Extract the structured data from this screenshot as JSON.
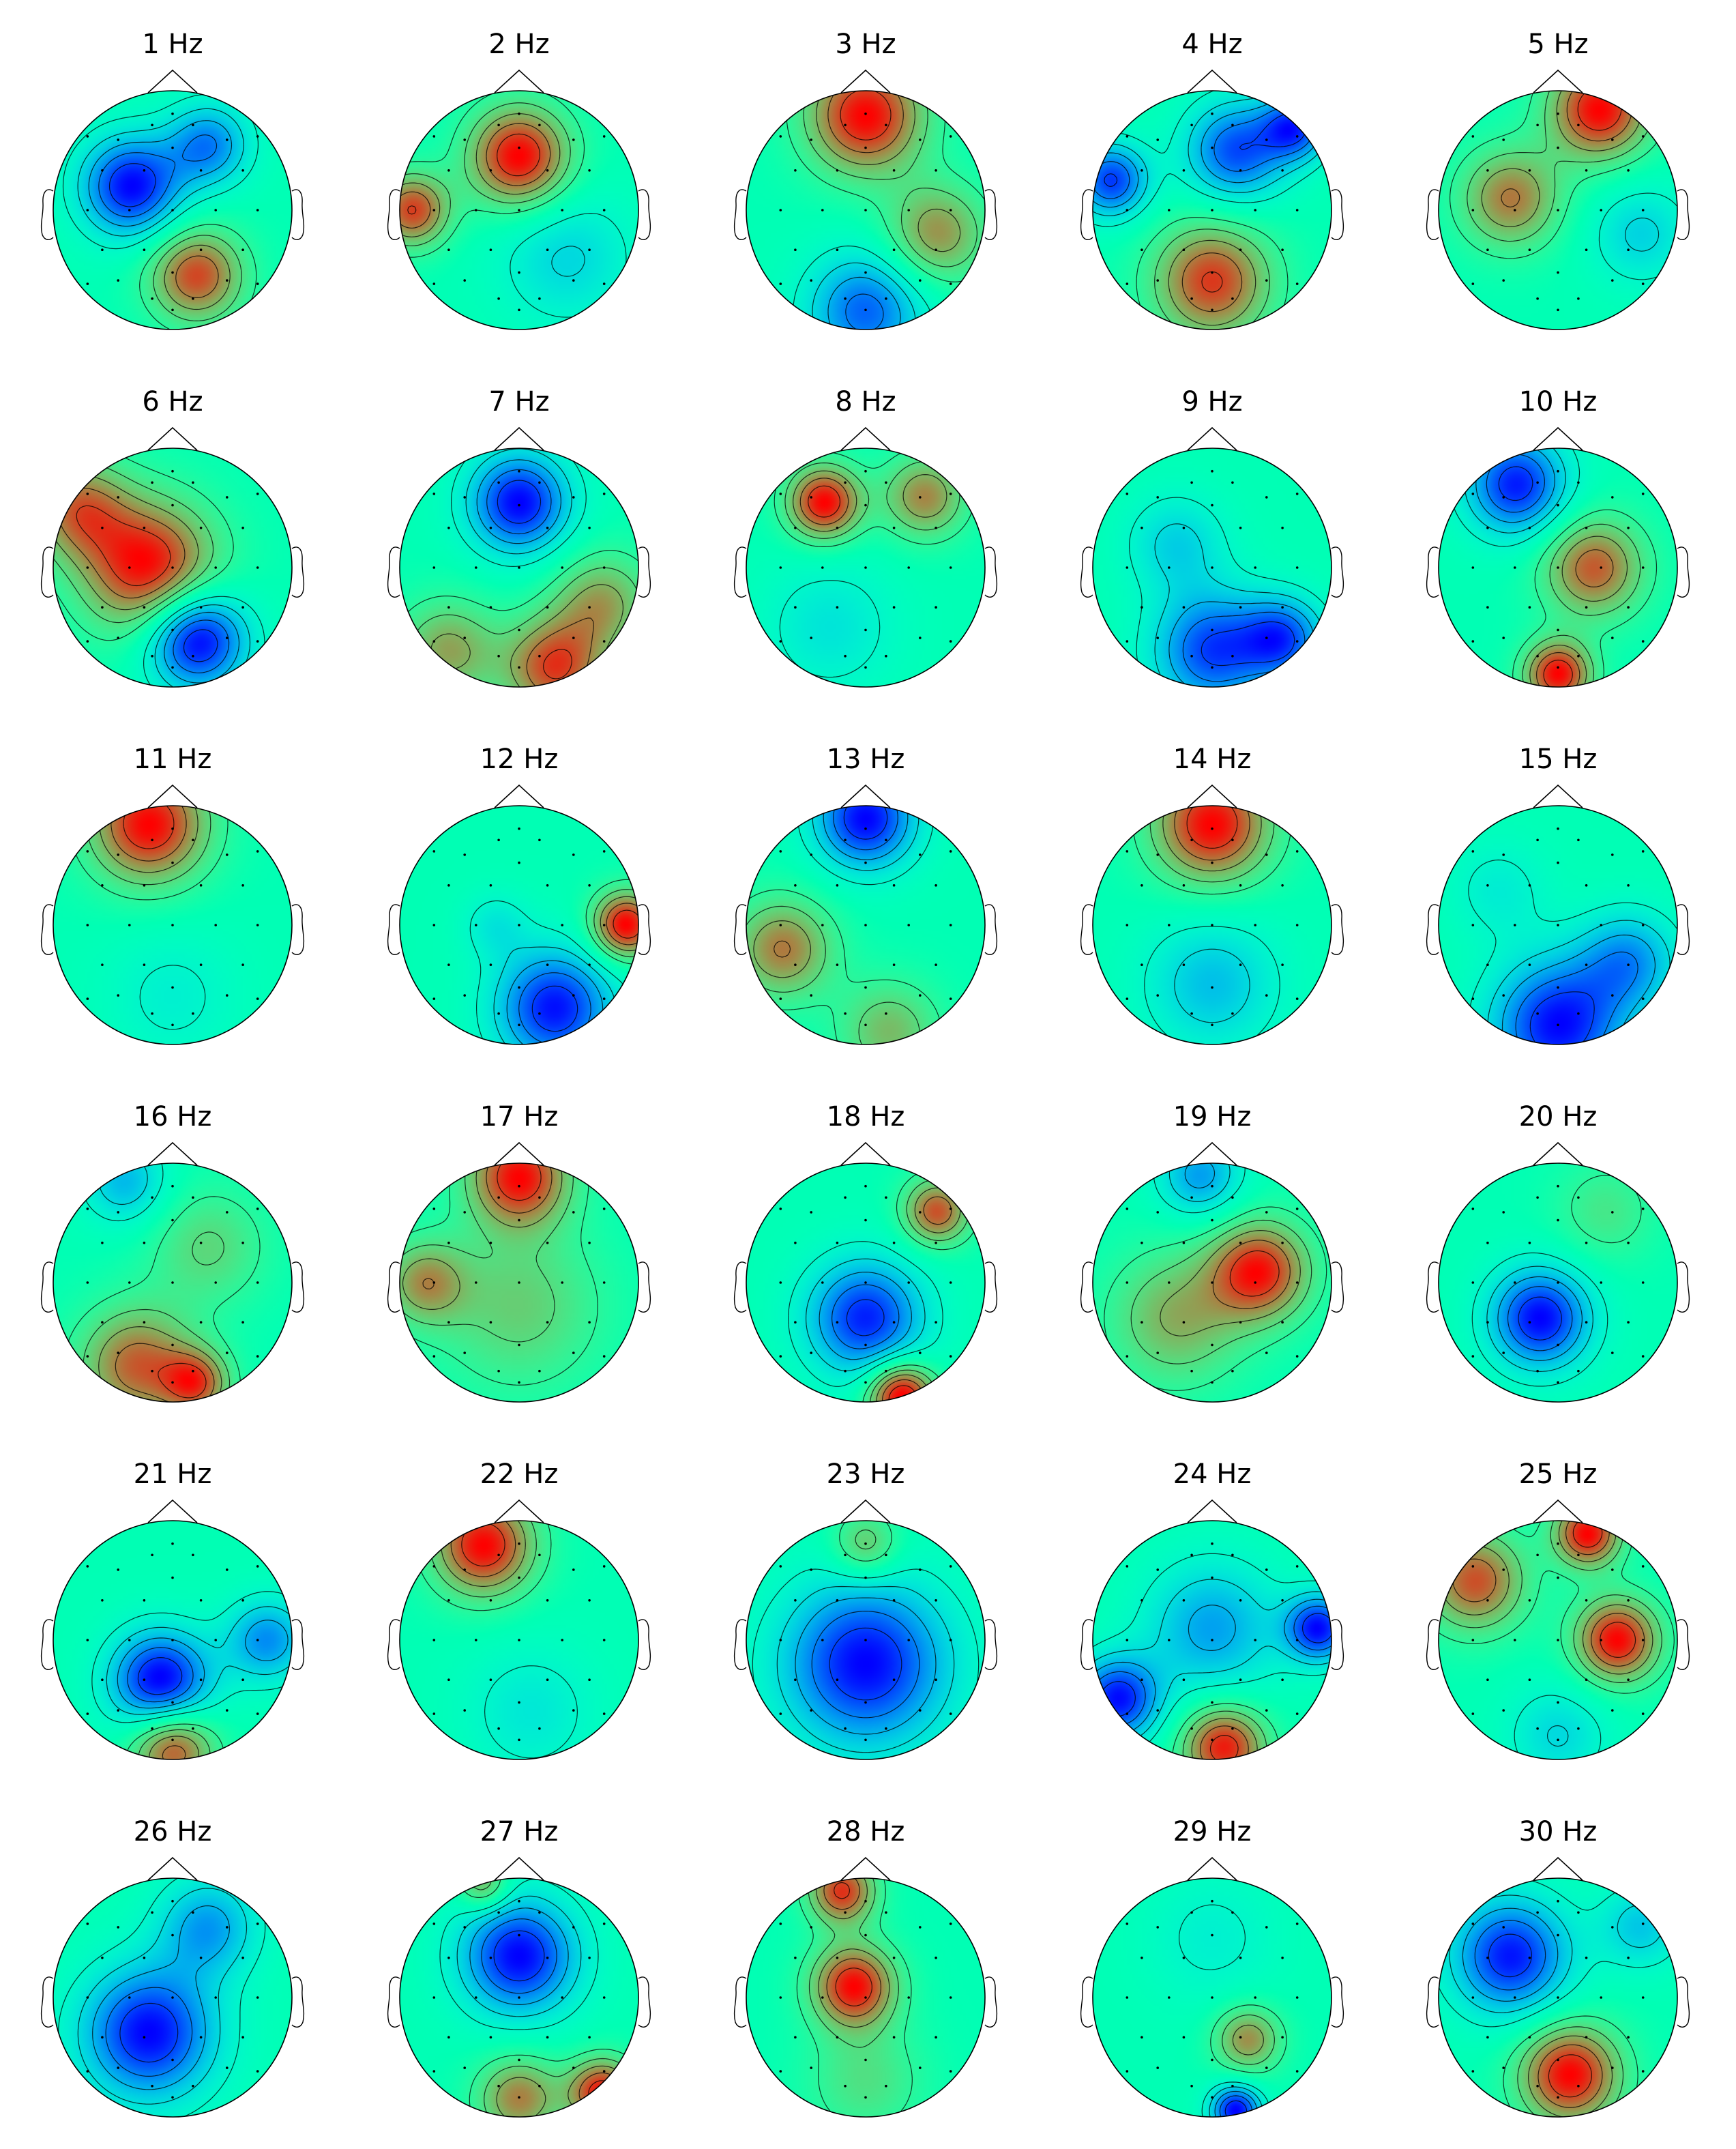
{
  "figure": {
    "colormap": "rainbow",
    "colors": {
      "outline": "#000000",
      "background": "#ffffff"
    },
    "panels": [
      {
        "title": "1 Hz",
        "blobs": [
          {
            "u": -0.35,
            "v": -0.2,
            "s": 0.3,
            "a": -0.9
          },
          {
            "u": 0.3,
            "v": -0.55,
            "s": 0.25,
            "a": -0.6
          },
          {
            "u": 0.2,
            "v": 0.55,
            "s": 0.28,
            "a": 0.75
          }
        ]
      },
      {
        "title": "2 Hz",
        "blobs": [
          {
            "u": 0.0,
            "v": -0.45,
            "s": 0.3,
            "a": 0.85
          },
          {
            "u": -0.9,
            "v": 0.0,
            "s": 0.22,
            "a": 0.7
          },
          {
            "u": 0.4,
            "v": 0.4,
            "s": 0.4,
            "a": -0.3
          }
        ]
      },
      {
        "title": "3 Hz",
        "blobs": [
          {
            "u": 0.0,
            "v": -0.8,
            "s": 0.35,
            "a": 0.4
          },
          {
            "u": 0.0,
            "v": 0.85,
            "s": 0.35,
            "a": -0.3
          },
          {
            "u": 0.6,
            "v": 0.2,
            "s": 0.3,
            "a": 0.25
          }
        ]
      },
      {
        "title": "4 Hz",
        "blobs": [
          {
            "u": 0.2,
            "v": -0.5,
            "s": 0.3,
            "a": -0.8
          },
          {
            "u": -0.85,
            "v": -0.25,
            "s": 0.22,
            "a": -0.85
          },
          {
            "u": 0.7,
            "v": -0.7,
            "s": 0.2,
            "a": -0.8
          },
          {
            "u": 0.0,
            "v": 0.6,
            "s": 0.35,
            "a": 0.85
          }
        ]
      },
      {
        "title": "5 Hz",
        "blobs": [
          {
            "u": 0.35,
            "v": -0.85,
            "s": 0.3,
            "a": 0.8
          },
          {
            "u": -0.4,
            "v": -0.1,
            "s": 0.3,
            "a": 0.55
          },
          {
            "u": 0.7,
            "v": 0.2,
            "s": 0.3,
            "a": -0.3
          }
        ]
      },
      {
        "title": "6 Hz",
        "blobs": [
          {
            "u": -0.2,
            "v": 0.0,
            "s": 0.4,
            "a": 0.45
          },
          {
            "u": 0.2,
            "v": 0.6,
            "s": 0.3,
            "a": -0.5
          },
          {
            "u": -0.8,
            "v": -0.5,
            "s": 0.3,
            "a": 0.3
          }
        ]
      },
      {
        "title": "7 Hz",
        "blobs": [
          {
            "u": 0.0,
            "v": -0.55,
            "s": 0.3,
            "a": -0.9
          },
          {
            "u": 0.3,
            "v": 0.85,
            "s": 0.3,
            "a": 0.75
          },
          {
            "u": 0.7,
            "v": 0.3,
            "s": 0.3,
            "a": 0.5
          },
          {
            "u": -0.6,
            "v": 0.7,
            "s": 0.3,
            "a": 0.5
          }
        ]
      },
      {
        "title": "8 Hz",
        "blobs": [
          {
            "u": -0.35,
            "v": -0.55,
            "s": 0.22,
            "a": 0.7
          },
          {
            "u": 0.5,
            "v": -0.6,
            "s": 0.25,
            "a": 0.45
          },
          {
            "u": -0.3,
            "v": 0.5,
            "s": 0.4,
            "a": -0.2
          }
        ]
      },
      {
        "title": "9 Hz",
        "blobs": [
          {
            "u": 0.0,
            "v": 0.7,
            "s": 0.35,
            "a": -0.55
          },
          {
            "u": -0.3,
            "v": -0.2,
            "s": 0.3,
            "a": -0.25
          },
          {
            "u": 0.6,
            "v": 0.6,
            "s": 0.25,
            "a": -0.5
          }
        ]
      },
      {
        "title": "10 Hz",
        "blobs": [
          {
            "u": -0.35,
            "v": -0.7,
            "s": 0.3,
            "a": -0.85
          },
          {
            "u": 0.3,
            "v": 0.0,
            "s": 0.3,
            "a": 0.7
          },
          {
            "u": 0.0,
            "v": 0.9,
            "s": 0.2,
            "a": 0.9
          }
        ]
      },
      {
        "title": "11 Hz",
        "blobs": [
          {
            "u": -0.2,
            "v": -0.85,
            "s": 0.35,
            "a": 0.95
          },
          {
            "u": 0.0,
            "v": 0.6,
            "s": 0.4,
            "a": -0.2
          }
        ]
      },
      {
        "title": "12 Hz",
        "blobs": [
          {
            "u": 0.9,
            "v": 0.0,
            "s": 0.2,
            "a": 0.8
          },
          {
            "u": 0.3,
            "v": 0.7,
            "s": 0.35,
            "a": -0.75
          },
          {
            "u": -0.2,
            "v": 0.0,
            "s": 0.2,
            "a": -0.2
          }
        ]
      },
      {
        "title": "13 Hz",
        "blobs": [
          {
            "u": 0.0,
            "v": -0.9,
            "s": 0.3,
            "a": -0.95
          },
          {
            "u": -0.7,
            "v": 0.2,
            "s": 0.3,
            "a": 0.65
          },
          {
            "u": 0.2,
            "v": 0.9,
            "s": 0.3,
            "a": 0.45
          }
        ]
      },
      {
        "title": "14 Hz",
        "blobs": [
          {
            "u": 0.0,
            "v": -0.85,
            "s": 0.35,
            "a": 0.55
          },
          {
            "u": 0.0,
            "v": 0.5,
            "s": 0.4,
            "a": -0.25
          }
        ]
      },
      {
        "title": "15 Hz",
        "blobs": [
          {
            "u": 0.0,
            "v": 0.85,
            "s": 0.4,
            "a": -0.85
          },
          {
            "u": 0.6,
            "v": 0.3,
            "s": 0.3,
            "a": -0.5
          },
          {
            "u": -0.5,
            "v": -0.3,
            "s": 0.3,
            "a": -0.2
          }
        ]
      },
      {
        "title": "16 Hz",
        "blobs": [
          {
            "u": -0.3,
            "v": 0.7,
            "s": 0.35,
            "a": 0.85
          },
          {
            "u": 0.2,
            "v": 0.85,
            "s": 0.2,
            "a": 0.8
          },
          {
            "u": 0.3,
            "v": -0.3,
            "s": 0.35,
            "a": 0.4
          },
          {
            "u": -0.4,
            "v": -0.85,
            "s": 0.25,
            "a": -0.55
          }
        ]
      },
      {
        "title": "17 Hz",
        "blobs": [
          {
            "u": 0.0,
            "v": -0.9,
            "s": 0.3,
            "a": 0.85
          },
          {
            "u": -0.8,
            "v": 0.0,
            "s": 0.25,
            "a": 0.5
          },
          {
            "u": 0.0,
            "v": 0.2,
            "s": 0.5,
            "a": 0.35
          }
        ]
      },
      {
        "title": "18 Hz",
        "blobs": [
          {
            "u": 0.0,
            "v": 0.3,
            "s": 0.35,
            "a": -0.75
          },
          {
            "u": 0.3,
            "v": 0.95,
            "s": 0.2,
            "a": 0.9
          },
          {
            "u": 0.6,
            "v": -0.6,
            "s": 0.2,
            "a": 0.65
          }
        ]
      },
      {
        "title": "19 Hz",
        "blobs": [
          {
            "u": 0.4,
            "v": -0.1,
            "s": 0.3,
            "a": 0.8
          },
          {
            "u": -0.3,
            "v": 0.3,
            "s": 0.4,
            "a": 0.45
          },
          {
            "u": -0.1,
            "v": -0.9,
            "s": 0.25,
            "a": -0.5
          }
        ]
      },
      {
        "title": "20 Hz",
        "blobs": [
          {
            "u": -0.15,
            "v": 0.3,
            "s": 0.3,
            "a": -0.55
          },
          {
            "u": 0.4,
            "v": -0.6,
            "s": 0.3,
            "a": 0.15
          }
        ]
      },
      {
        "title": "21 Hz",
        "blobs": [
          {
            "u": -0.1,
            "v": 0.35,
            "s": 0.3,
            "a": -0.85
          },
          {
            "u": 0.0,
            "v": 0.9,
            "s": 0.25,
            "a": 0.7
          },
          {
            "u": 0.8,
            "v": 0.0,
            "s": 0.25,
            "a": -0.5
          }
        ]
      },
      {
        "title": "22 Hz",
        "blobs": [
          {
            "u": -0.3,
            "v": -0.8,
            "s": 0.3,
            "a": 0.75
          },
          {
            "u": 0.1,
            "v": 0.6,
            "s": 0.4,
            "a": -0.2
          }
        ]
      },
      {
        "title": "23 Hz",
        "blobs": [
          {
            "u": 0.0,
            "v": 0.2,
            "s": 0.5,
            "a": -0.4
          },
          {
            "u": 0.0,
            "v": -0.8,
            "s": 0.2,
            "a": 0.2
          }
        ]
      },
      {
        "title": "24 Hz",
        "blobs": [
          {
            "u": 0.9,
            "v": -0.1,
            "s": 0.2,
            "a": -0.85
          },
          {
            "u": -0.8,
            "v": 0.5,
            "s": 0.25,
            "a": -0.85
          },
          {
            "u": 0.1,
            "v": 0.9,
            "s": 0.25,
            "a": 0.85
          },
          {
            "u": 0.0,
            "v": -0.1,
            "s": 0.4,
            "a": -0.5
          }
        ]
      },
      {
        "title": "25 Hz",
        "blobs": [
          {
            "u": 0.25,
            "v": -0.9,
            "s": 0.2,
            "a": 1.0
          },
          {
            "u": 0.5,
            "v": 0.0,
            "s": 0.25,
            "a": 1.0
          },
          {
            "u": -0.7,
            "v": -0.5,
            "s": 0.3,
            "a": 0.8
          },
          {
            "u": 0.0,
            "v": 0.8,
            "s": 0.3,
            "a": -0.35
          }
        ]
      },
      {
        "title": "26 Hz",
        "blobs": [
          {
            "u": -0.2,
            "v": 0.3,
            "s": 0.4,
            "a": -0.35
          },
          {
            "u": 0.3,
            "v": -0.6,
            "s": 0.3,
            "a": -0.2
          }
        ]
      },
      {
        "title": "27 Hz",
        "blobs": [
          {
            "u": 0.0,
            "v": -0.35,
            "s": 0.35,
            "a": -0.9
          },
          {
            "u": 0.7,
            "v": 0.8,
            "s": 0.2,
            "a": 0.85
          },
          {
            "u": 0.0,
            "v": 0.85,
            "s": 0.25,
            "a": 0.6
          },
          {
            "u": -0.3,
            "v": -0.95,
            "s": 0.15,
            "a": 0.5
          }
        ]
      },
      {
        "title": "28 Hz",
        "blobs": [
          {
            "u": -0.1,
            "v": -0.1,
            "s": 0.25,
            "a": 0.95
          },
          {
            "u": -0.2,
            "v": -0.9,
            "s": 0.2,
            "a": 0.85
          },
          {
            "u": 0.0,
            "v": 0.7,
            "s": 0.35,
            "a": 0.3
          }
        ]
      },
      {
        "title": "29 Hz",
        "blobs": [
          {
            "u": 0.2,
            "v": 0.95,
            "s": 0.15,
            "a": -0.95
          },
          {
            "u": 0.3,
            "v": 0.35,
            "s": 0.2,
            "a": 0.6
          },
          {
            "u": 0.0,
            "v": -0.5,
            "s": 0.4,
            "a": -0.2
          }
        ]
      },
      {
        "title": "30 Hz",
        "blobs": [
          {
            "u": -0.4,
            "v": -0.35,
            "s": 0.35,
            "a": -0.9
          },
          {
            "u": 0.1,
            "v": 0.65,
            "s": 0.3,
            "a": 0.95
          },
          {
            "u": 0.7,
            "v": -0.6,
            "s": 0.25,
            "a": -0.4
          }
        ]
      }
    ]
  }
}
